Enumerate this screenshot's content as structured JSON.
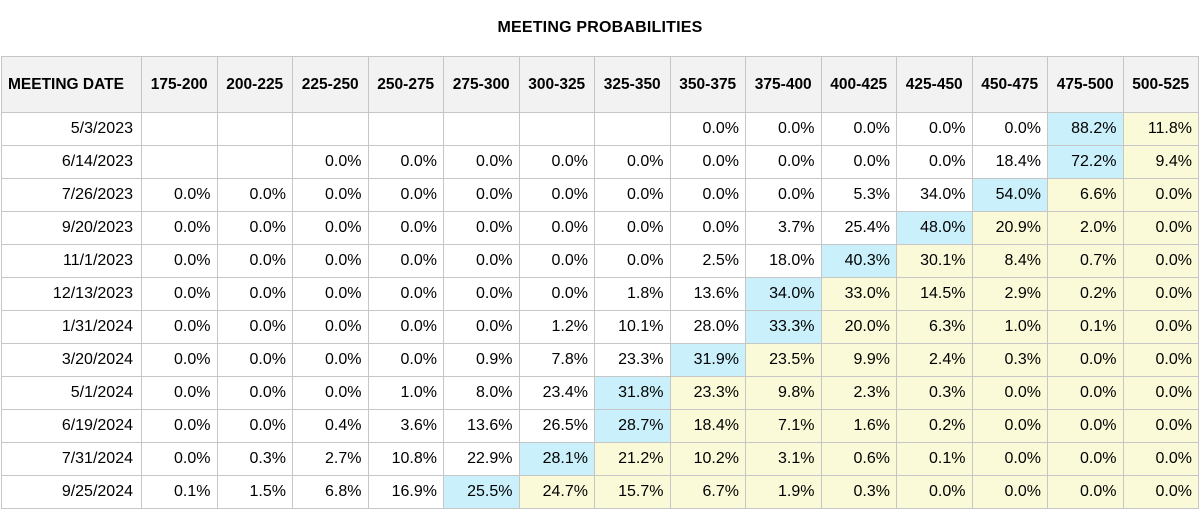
{
  "chart_data": {
    "type": "table",
    "title": "MEETING PROBABILITIES",
    "columns": [
      "MEETING DATE",
      "175-200",
      "200-225",
      "225-250",
      "250-275",
      "275-300",
      "300-325",
      "325-350",
      "350-375",
      "375-400",
      "400-425",
      "425-450",
      "450-475",
      "475-500",
      "500-525"
    ],
    "rows": [
      {
        "date": "5/3/2023",
        "values": [
          null,
          null,
          null,
          null,
          null,
          null,
          null,
          "0.0%",
          "0.0%",
          "0.0%",
          "0.0%",
          "0.0%",
          "88.2%",
          "11.8%"
        ],
        "max_index": 11
      },
      {
        "date": "6/14/2023",
        "values": [
          null,
          null,
          "0.0%",
          "0.0%",
          "0.0%",
          "0.0%",
          "0.0%",
          "0.0%",
          "0.0%",
          "0.0%",
          "0.0%",
          "18.4%",
          "72.2%",
          "9.4%"
        ],
        "max_index": 11
      },
      {
        "date": "7/26/2023",
        "values": [
          "0.0%",
          "0.0%",
          "0.0%",
          "0.0%",
          "0.0%",
          "0.0%",
          "0.0%",
          "0.0%",
          "0.0%",
          "5.3%",
          "34.0%",
          "54.0%",
          "6.6%",
          "0.0%"
        ],
        "max_index": 10
      },
      {
        "date": "9/20/2023",
        "values": [
          "0.0%",
          "0.0%",
          "0.0%",
          "0.0%",
          "0.0%",
          "0.0%",
          "0.0%",
          "0.0%",
          "3.7%",
          "25.4%",
          "48.0%",
          "20.9%",
          "2.0%",
          "0.0%"
        ],
        "max_index": 9
      },
      {
        "date": "11/1/2023",
        "values": [
          "0.0%",
          "0.0%",
          "0.0%",
          "0.0%",
          "0.0%",
          "0.0%",
          "0.0%",
          "2.5%",
          "18.0%",
          "40.3%",
          "30.1%",
          "8.4%",
          "0.7%",
          "0.0%"
        ],
        "max_index": 8
      },
      {
        "date": "12/13/2023",
        "values": [
          "0.0%",
          "0.0%",
          "0.0%",
          "0.0%",
          "0.0%",
          "0.0%",
          "1.8%",
          "13.6%",
          "34.0%",
          "33.0%",
          "14.5%",
          "2.9%",
          "0.2%",
          "0.0%"
        ],
        "max_index": 7
      },
      {
        "date": "1/31/2024",
        "values": [
          "0.0%",
          "0.0%",
          "0.0%",
          "0.0%",
          "0.0%",
          "1.2%",
          "10.1%",
          "28.0%",
          "33.3%",
          "20.0%",
          "6.3%",
          "1.0%",
          "0.1%",
          "0.0%"
        ],
        "max_index": 7
      },
      {
        "date": "3/20/2024",
        "values": [
          "0.0%",
          "0.0%",
          "0.0%",
          "0.0%",
          "0.9%",
          "7.8%",
          "23.3%",
          "31.9%",
          "23.5%",
          "9.9%",
          "2.4%",
          "0.3%",
          "0.0%",
          "0.0%"
        ],
        "max_index": 6
      },
      {
        "date": "5/1/2024",
        "values": [
          "0.0%",
          "0.0%",
          "0.0%",
          "1.0%",
          "8.0%",
          "23.4%",
          "31.8%",
          "23.3%",
          "9.8%",
          "2.3%",
          "0.3%",
          "0.0%",
          "0.0%",
          "0.0%"
        ],
        "max_index": 5
      },
      {
        "date": "6/19/2024",
        "values": [
          "0.0%",
          "0.0%",
          "0.4%",
          "3.6%",
          "13.6%",
          "26.5%",
          "28.7%",
          "18.4%",
          "7.1%",
          "1.6%",
          "0.2%",
          "0.0%",
          "0.0%",
          "0.0%"
        ],
        "max_index": 5
      },
      {
        "date": "7/31/2024",
        "values": [
          "0.0%",
          "0.3%",
          "2.7%",
          "10.8%",
          "22.9%",
          "28.1%",
          "21.2%",
          "10.2%",
          "3.1%",
          "0.6%",
          "0.1%",
          "0.0%",
          "0.0%",
          "0.0%"
        ],
        "max_index": 4
      },
      {
        "date": "9/25/2024",
        "values": [
          "0.1%",
          "1.5%",
          "6.8%",
          "16.9%",
          "25.5%",
          "24.7%",
          "15.7%",
          "6.7%",
          "1.9%",
          "0.3%",
          "0.0%",
          "0.0%",
          "0.0%",
          "0.0%"
        ],
        "max_index": 3
      }
    ],
    "colors": {
      "max_cell": "#c9f0fb",
      "above_max_cell": "#fafad8",
      "header_bg": "#f2f2f2",
      "border": "#c6c6c6"
    }
  }
}
